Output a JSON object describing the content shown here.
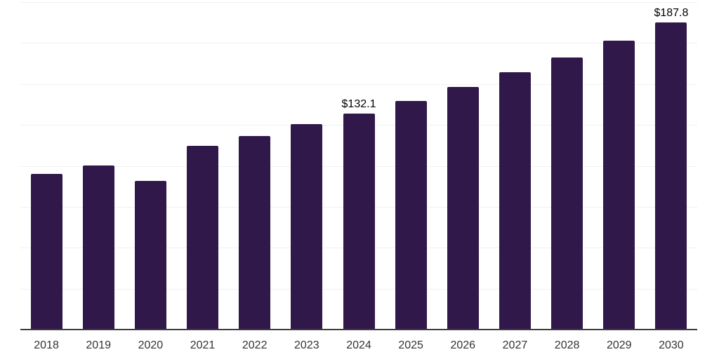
{
  "chart_data": {
    "type": "bar",
    "title": "",
    "xlabel": "",
    "ylabel": "",
    "categories": [
      "2018",
      "2019",
      "2020",
      "2021",
      "2022",
      "2023",
      "2024",
      "2025",
      "2026",
      "2027",
      "2028",
      "2029",
      "2030"
    ],
    "values": [
      94.9,
      100.3,
      91.0,
      112.0,
      118.0,
      125.3,
      132.1,
      139.6,
      148.0,
      157.0,
      166.2,
      176.5,
      187.8
    ],
    "data_labels": [
      "",
      "",
      "",
      "",
      "",
      "",
      "$132.1",
      "",
      "",
      "",
      "",
      "",
      "$187.8"
    ],
    "ylim": [
      0,
      200
    ],
    "gridline_step": 25,
    "grid": true,
    "legend": false,
    "colors": {
      "bar": "#31184a",
      "gridline": "#f0f0f0",
      "axis": "#3d3d3d",
      "tick_label": "#333333",
      "data_label": "#000000",
      "background": "#ffffff"
    }
  }
}
